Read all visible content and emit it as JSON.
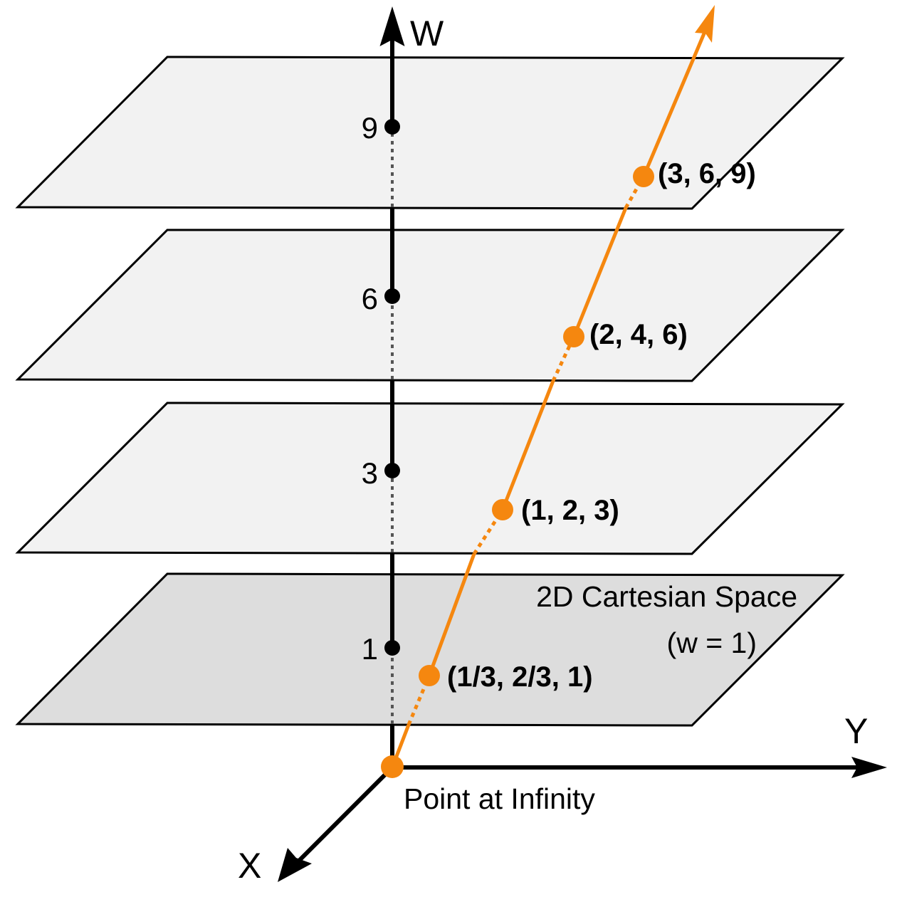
{
  "axes": {
    "w_label": "W",
    "x_label": "X",
    "y_label": "Y"
  },
  "w_ticks": [
    "9",
    "6",
    "3",
    "1"
  ],
  "points": [
    {
      "label": "(3, 6, 9)",
      "w": 9
    },
    {
      "label": "(2, 4, 6)",
      "w": 6
    },
    {
      "label": "(1, 2, 3)",
      "w": 3
    },
    {
      "label": "(1/3, 2/3, 1)",
      "w": 1
    }
  ],
  "base_plane": {
    "title": "2D Cartesian Space",
    "subtitle": "(w = 1)"
  },
  "origin_label": "Point at Infinity",
  "colors": {
    "ray": "#f5870f",
    "plane_light": "#f2f2f2",
    "plane_base": "#dddddd",
    "outline": "#000000",
    "dotted": "#555555"
  }
}
